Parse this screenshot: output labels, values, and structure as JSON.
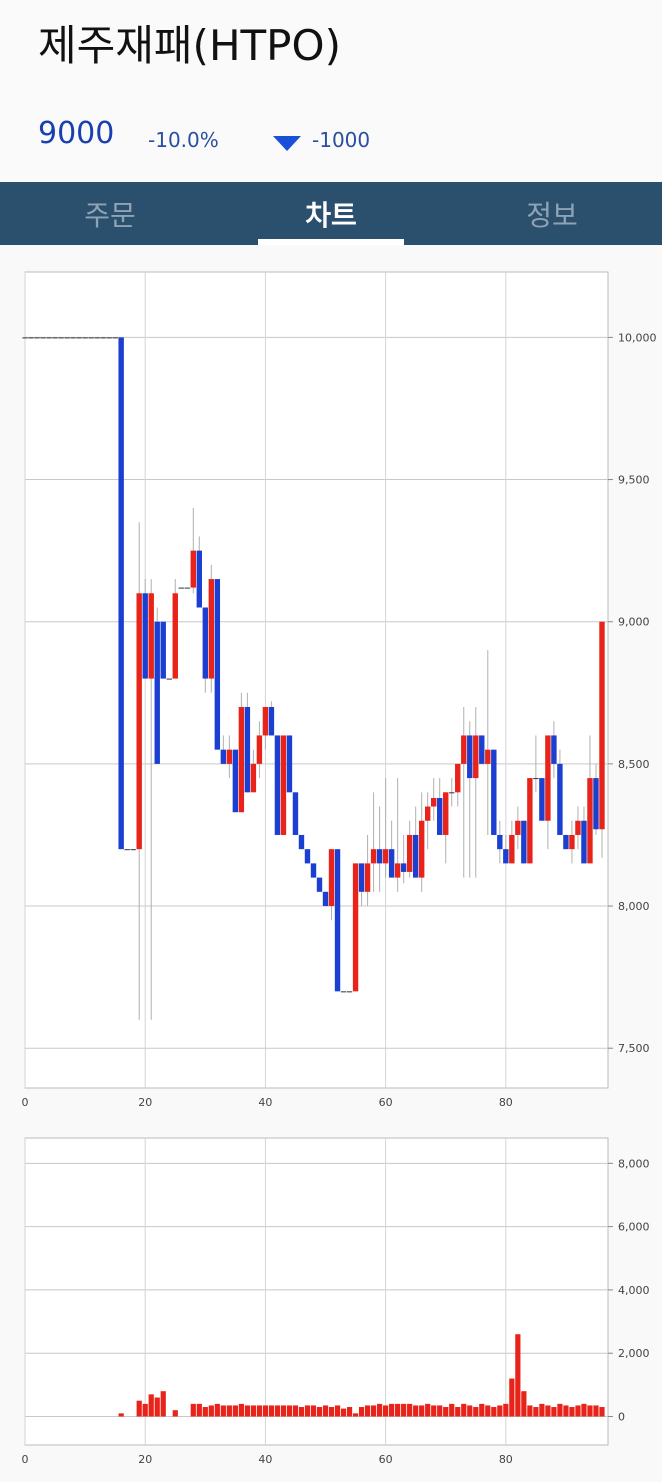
{
  "header": {
    "title": "제주재패(HTPO)",
    "price": "9000",
    "change_pct": "-10.0%",
    "change": "-1000"
  },
  "tabs": [
    "주문",
    "차트",
    "정보"
  ],
  "chart_data": [
    {
      "type": "candlestick",
      "up_color": "#e8231a",
      "down_color": "#1a3fd1",
      "wick_color": "#b0b0b0",
      "grid": true,
      "x": [
        0,
        1,
        2,
        3,
        4,
        5,
        6,
        7,
        8,
        9,
        10,
        11,
        12,
        13,
        14,
        15,
        16,
        17,
        18,
        19,
        20,
        21,
        22,
        23,
        24,
        25,
        26,
        27,
        28,
        29,
        30,
        31,
        32,
        33,
        34,
        35,
        36,
        37,
        38,
        39,
        40,
        41,
        42,
        43,
        44,
        45,
        46,
        47,
        48,
        49,
        50,
        51,
        52,
        53,
        54,
        55,
        56,
        57,
        58,
        59,
        60,
        61,
        62,
        63,
        64,
        65,
        66,
        67,
        68,
        69,
        70,
        71,
        72,
        73,
        74,
        75,
        76,
        77,
        78,
        79,
        80,
        81,
        82,
        83,
        84,
        85,
        86,
        87,
        88,
        89,
        90,
        91,
        92,
        93,
        94,
        95,
        96
      ],
      "open": [
        10000,
        10000,
        10000,
        10000,
        10000,
        10000,
        10000,
        10000,
        10000,
        10000,
        10000,
        10000,
        10000,
        10000,
        10000,
        10000,
        10000,
        8200,
        8200,
        8200,
        9100,
        8800,
        9000,
        9000,
        8800,
        8800,
        9120,
        9120,
        9120,
        9250,
        9050,
        8800,
        9150,
        8550,
        8500,
        8550,
        8330,
        8700,
        8400,
        8500,
        8600,
        8700,
        8600,
        8250,
        8600,
        8400,
        8250,
        8200,
        8150,
        8100,
        8050,
        8000,
        8200,
        7700,
        7700,
        7700,
        8150,
        8050,
        8150,
        8200,
        8150,
        8200,
        8100,
        8150,
        8120,
        8250,
        8100,
        8300,
        8350,
        8380,
        8250,
        8400,
        8400,
        8500,
        8600,
        8450,
        8600,
        8500,
        8550,
        8250,
        8200,
        8150,
        8250,
        8300,
        8150,
        8450,
        8450,
        8300,
        8600,
        8500,
        8250,
        8200,
        8250,
        8300,
        8150,
        8450,
        8270
      ],
      "high": [
        10000,
        10000,
        10000,
        10000,
        10000,
        10000,
        10000,
        10000,
        10000,
        10000,
        10000,
        10000,
        10000,
        10000,
        10000,
        10000,
        10000,
        8200,
        8200,
        9350,
        9150,
        9150,
        9050,
        9000,
        8800,
        9150,
        9120,
        9120,
        9400,
        9300,
        9050,
        9200,
        9150,
        8600,
        8600,
        8550,
        8750,
        8750,
        8550,
        8650,
        8700,
        8720,
        8600,
        8600,
        8600,
        8400,
        8250,
        8200,
        8150,
        8100,
        8050,
        8200,
        8200,
        7700,
        7700,
        8150,
        8150,
        8250,
        8400,
        8350,
        8450,
        8300,
        8450,
        8250,
        8300,
        8350,
        8400,
        8400,
        8450,
        8450,
        8400,
        8450,
        8500,
        8700,
        8650,
        8700,
        8600,
        8900,
        8550,
        8300,
        8250,
        8300,
        8350,
        8300,
        8450,
        8600,
        8450,
        8600,
        8650,
        8550,
        8250,
        8300,
        8350,
        8350,
        8600,
        8500,
        9000
      ],
      "low": [
        10000,
        10000,
        10000,
        10000,
        10000,
        10000,
        10000,
        10000,
        10000,
        10000,
        10000,
        10000,
        10000,
        10000,
        10000,
        10000,
        8200,
        8200,
        8200,
        7600,
        8800,
        7600,
        8500,
        8800,
        8800,
        8800,
        9120,
        9120,
        9100,
        9050,
        8750,
        8750,
        8550,
        8500,
        8450,
        8330,
        8330,
        8400,
        8400,
        8450,
        8550,
        8600,
        8250,
        8250,
        8400,
        8250,
        8200,
        8150,
        8100,
        8050,
        8000,
        7950,
        7700,
        7700,
        7700,
        7700,
        8000,
        8000,
        8050,
        8050,
        8100,
        8100,
        8050,
        8080,
        8100,
        8100,
        8050,
        8200,
        8300,
        8250,
        8150,
        8350,
        8350,
        8100,
        8100,
        8100,
        8500,
        8250,
        8250,
        8150,
        8150,
        8150,
        8200,
        8150,
        8150,
        8400,
        8300,
        8200,
        8450,
        8250,
        8200,
        8150,
        8200,
        8150,
        8150,
        8250,
        8170
      ],
      "close": [
        10000,
        10000,
        10000,
        10000,
        10000,
        10000,
        10000,
        10000,
        10000,
        10000,
        10000,
        10000,
        10000,
        10000,
        10000,
        10000,
        8200,
        8200,
        8200,
        9100,
        8800,
        9100,
        8500,
        8800,
        8800,
        9100,
        9120,
        9120,
        9250,
        9050,
        8800,
        9150,
        8550,
        8500,
        8550,
        8330,
        8700,
        8400,
        8500,
        8600,
        8700,
        8600,
        8250,
        8600,
        8400,
        8250,
        8200,
        8150,
        8100,
        8050,
        8000,
        8200,
        7700,
        7700,
        7700,
        8150,
        8050,
        8150,
        8200,
        8150,
        8200,
        8100,
        8150,
        8120,
        8250,
        8100,
        8300,
        8350,
        8380,
        8250,
        8400,
        8400,
        8500,
        8600,
        8450,
        8600,
        8500,
        8550,
        8250,
        8200,
        8150,
        8250,
        8300,
        8150,
        8450,
        8450,
        8300,
        8600,
        8500,
        8250,
        8200,
        8250,
        8300,
        8150,
        8450,
        8270,
        9000
      ],
      "xlim": [
        0,
        97
      ],
      "xticks": [
        0,
        20,
        40,
        60,
        80
      ],
      "ylim": [
        7360,
        10230
      ],
      "yticks": [
        {
          "value": 7500,
          "label": "7,500"
        },
        {
          "value": 8000,
          "label": "8,000"
        },
        {
          "value": 8500,
          "label": "8,500"
        },
        {
          "value": 9000,
          "label": "9,000"
        },
        {
          "value": 9500,
          "label": "9,500"
        },
        {
          "value": 10000,
          "label": "10,000"
        }
      ]
    },
    {
      "type": "bar",
      "color": "#e8231a",
      "grid": true,
      "x": [
        0,
        1,
        2,
        3,
        4,
        5,
        6,
        7,
        8,
        9,
        10,
        11,
        12,
        13,
        14,
        15,
        16,
        17,
        18,
        19,
        20,
        21,
        22,
        23,
        24,
        25,
        26,
        27,
        28,
        29,
        30,
        31,
        32,
        33,
        34,
        35,
        36,
        37,
        38,
        39,
        40,
        41,
        42,
        43,
        44,
        45,
        46,
        47,
        48,
        49,
        50,
        51,
        52,
        53,
        54,
        55,
        56,
        57,
        58,
        59,
        60,
        61,
        62,
        63,
        64,
        65,
        66,
        67,
        68,
        69,
        70,
        71,
        72,
        73,
        74,
        75,
        76,
        77,
        78,
        79,
        80,
        81,
        82,
        83,
        84,
        85,
        86,
        87,
        88,
        89,
        90,
        91,
        92,
        93,
        94,
        95,
        96
      ],
      "values": [
        0,
        0,
        0,
        0,
        0,
        0,
        0,
        0,
        0,
        0,
        0,
        0,
        0,
        0,
        0,
        0,
        100,
        0,
        0,
        500,
        400,
        700,
        600,
        800,
        0,
        200,
        0,
        0,
        400,
        400,
        300,
        350,
        400,
        350,
        350,
        350,
        400,
        350,
        350,
        350,
        350,
        350,
        350,
        350,
        350,
        350,
        300,
        350,
        350,
        300,
        350,
        300,
        350,
        250,
        300,
        100,
        300,
        350,
        350,
        400,
        350,
        400,
        400,
        400,
        400,
        350,
        350,
        400,
        350,
        350,
        300,
        400,
        300,
        400,
        350,
        300,
        400,
        350,
        300,
        350,
        400,
        1200,
        2600,
        800,
        350,
        300,
        400,
        350,
        300,
        400,
        350,
        300,
        350,
        400,
        350,
        350,
        300
      ],
      "xlim": [
        0,
        97
      ],
      "xticks": [
        0,
        20,
        40,
        60,
        80
      ],
      "ylim": [
        -900,
        8800
      ],
      "yticks": [
        0,
        {
          "value": 2000,
          "label": "2,000"
        },
        {
          "value": 4000,
          "label": "4,000"
        },
        {
          "value": 6000,
          "label": "6,000"
        },
        {
          "value": 8000,
          "label": "8,000"
        }
      ]
    }
  ]
}
